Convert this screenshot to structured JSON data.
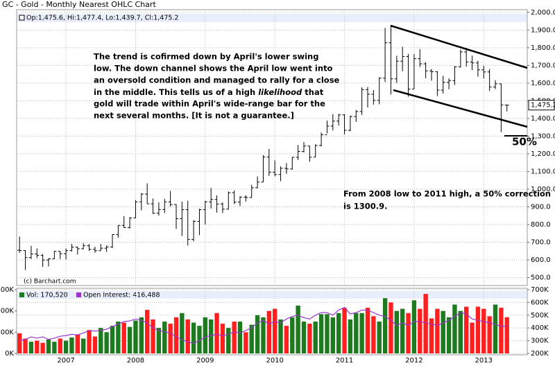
{
  "chart_data": [
    {
      "type": "ohlc",
      "title": "GC - Gold - Monthly Nearest OHLC Chart",
      "ohlc_legend": "Op:1,475.6, Hi:1,477.4, Lo:1,439.7, Cl:1,475.2",
      "categories": [
        null,
        null,
        null,
        null,
        null,
        null,
        null,
        null,
        "2007",
        null,
        null,
        null,
        null,
        null,
        null,
        null,
        null,
        null,
        null,
        null,
        "2008",
        null,
        null,
        null,
        null,
        null,
        null,
        null,
        null,
        null,
        null,
        null,
        "2009",
        null,
        null,
        null,
        null,
        null,
        null,
        null,
        null,
        null,
        null,
        null,
        "2010",
        null,
        null,
        null,
        null,
        null,
        null,
        null,
        null,
        null,
        null,
        null,
        "2011",
        null,
        null,
        null,
        null,
        null,
        null,
        null,
        null,
        null,
        null,
        null,
        "2012",
        null,
        null,
        null,
        null,
        null,
        null,
        null,
        null,
        null,
        null,
        null,
        "2013",
        null,
        null,
        null,
        null
      ],
      "ohlc": [
        [
          655,
          732,
          640,
          653
        ],
        [
          653,
          655,
          543,
          613
        ],
        [
          613,
          680,
          605,
          634
        ],
        [
          634,
          665,
          610,
          626
        ],
        [
          626,
          633,
          560,
          599
        ],
        [
          599,
          610,
          563,
          606
        ],
        [
          606,
          650,
          605,
          648
        ],
        [
          648,
          650,
          605,
          635
        ],
        [
          635,
          665,
          603,
          652
        ],
        [
          652,
          690,
          648,
          672
        ],
        [
          672,
          675,
          630,
          663
        ],
        [
          663,
          695,
          660,
          680
        ],
        [
          680,
          690,
          650,
          660
        ],
        [
          660,
          675,
          640,
          652
        ],
        [
          652,
          690,
          652,
          666
        ],
        [
          666,
          682,
          645,
          673
        ],
        [
          673,
          745,
          667,
          743
        ],
        [
          743,
          795,
          725,
          795
        ],
        [
          795,
          848,
          780,
          783
        ],
        [
          783,
          842,
          777,
          837
        ],
        [
          837,
          938,
          835,
          928
        ],
        [
          928,
          978,
          880,
          972
        ],
        [
          972,
          1033,
          917,
          917
        ],
        [
          917,
          947,
          860,
          864
        ],
        [
          864,
          925,
          850,
          885
        ],
        [
          885,
          945,
          865,
          928
        ],
        [
          928,
          990,
          902,
          913
        ],
        [
          913,
          915,
          775,
          833
        ],
        [
          833,
          930,
          735,
          884
        ],
        [
          884,
          935,
          681,
          716
        ],
        [
          716,
          825,
          705,
          818
        ],
        [
          818,
          889,
          740,
          884
        ],
        [
          884,
          935,
          800,
          928
        ],
        [
          928,
          1007,
          890,
          942
        ],
        [
          942,
          965,
          867,
          916
        ],
        [
          916,
          925,
          865,
          887
        ],
        [
          887,
          987,
          885,
          980
        ],
        [
          980,
          992,
          915,
          927
        ],
        [
          927,
          960,
          905,
          955
        ],
        [
          955,
          965,
          930,
          953
        ],
        [
          953,
          1025,
          952,
          1008
        ],
        [
          1008,
          1072,
          1005,
          1040
        ],
        [
          1040,
          1193,
          1040,
          1182
        ],
        [
          1182,
          1227,
          1075,
          1096
        ],
        [
          1096,
          1163,
          1073,
          1083
        ],
        [
          1083,
          1129,
          1045,
          1118
        ],
        [
          1118,
          1148,
          1087,
          1114
        ],
        [
          1114,
          1182,
          1110,
          1180
        ],
        [
          1180,
          1250,
          1165,
          1213
        ],
        [
          1213,
          1266,
          1208,
          1244
        ],
        [
          1244,
          1245,
          1155,
          1181
        ],
        [
          1181,
          1254,
          1181,
          1247
        ],
        [
          1247,
          1320,
          1242,
          1308
        ],
        [
          1308,
          1388,
          1316,
          1357
        ],
        [
          1357,
          1424,
          1332,
          1385
        ],
        [
          1385,
          1426,
          1360,
          1420
        ],
        [
          1420,
          1424,
          1310,
          1333
        ],
        [
          1333,
          1416,
          1327,
          1411
        ],
        [
          1411,
          1448,
          1380,
          1439
        ],
        [
          1439,
          1576,
          1420,
          1563
        ],
        [
          1563,
          1578,
          1462,
          1537
        ],
        [
          1537,
          1560,
          1478,
          1502
        ],
        [
          1502,
          1633,
          1480,
          1628
        ],
        [
          1628,
          1912,
          1606,
          1828
        ],
        [
          1828,
          1923,
          1535,
          1624
        ],
        [
          1624,
          1755,
          1600,
          1724
        ],
        [
          1724,
          1805,
          1667,
          1750
        ],
        [
          1750,
          1765,
          1523,
          1566
        ],
        [
          1566,
          1764,
          1567,
          1738
        ],
        [
          1738,
          1792,
          1691,
          1709
        ],
        [
          1709,
          1719,
          1627,
          1669
        ],
        [
          1669,
          1680,
          1613,
          1664
        ],
        [
          1664,
          1667,
          1527,
          1560
        ],
        [
          1560,
          1641,
          1541,
          1604
        ],
        [
          1604,
          1627,
          1565,
          1614
        ],
        [
          1614,
          1696,
          1589,
          1692
        ],
        [
          1692,
          1790,
          1688,
          1776
        ],
        [
          1776,
          1798,
          1693,
          1719
        ],
        [
          1719,
          1755,
          1673,
          1714
        ],
        [
          1714,
          1726,
          1636,
          1675
        ],
        [
          1675,
          1698,
          1626,
          1663
        ],
        [
          1663,
          1679,
          1555,
          1578
        ],
        [
          1578,
          1616,
          1566,
          1596
        ],
        [
          1596,
          1598,
          1322,
          1476
        ],
        [
          1475.6,
          1477.4,
          1439.7,
          1475.2
        ]
      ],
      "color": "#000000",
      "ylim": [
        455,
        2015
      ],
      "yticks": [
        {
          "value": 500,
          "label": "500.0"
        },
        {
          "value": 600,
          "label": "600.0"
        },
        {
          "value": 700,
          "label": "700.0"
        },
        {
          "value": 800,
          "label": "800.0"
        },
        {
          "value": 900,
          "label": "900.0"
        },
        {
          "value": 1000,
          "label": "1,000.0"
        },
        {
          "value": 1100,
          "label": "1,100.0"
        },
        {
          "value": 1200,
          "label": "1,200.0"
        },
        {
          "value": 1300,
          "label": "1,300.0"
        },
        {
          "value": 1400,
          "label": "1,400.0"
        },
        {
          "value": 1500,
          "label": "1,500.0"
        },
        {
          "value": 1600,
          "label": "1,600.0"
        },
        {
          "value": 1700,
          "label": "1,700.0"
        },
        {
          "value": 1800,
          "label": "1,800.0"
        },
        {
          "value": 1900,
          "label": "1,900.0"
        },
        {
          "value": 2000,
          "label": "2,000.0"
        }
      ],
      "last_label": "1,475.2",
      "grid": true,
      "source": "(c) Barchart.com",
      "note_lines": [
        "The trend is cofirmed down by April's lower swing",
        "low.  The down channel shows the April low went into",
        "an oversold condition and managed to rally for a close",
        [
          "in the middle.  This tells us of a high ",
          "likelihood",
          " that"
        ],
        "gold will trade within April's wide-range bar for the",
        "next several months.  [It is not a guarantee.]"
      ],
      "correction_lines": [
        "From 2008 low to 2011 high, a 50% correction",
        "is 1300.9."
      ],
      "fifty_label": "50%"
    },
    {
      "type": "bar",
      "series": [
        {
          "name": "Vol: 170,520",
          "up_color": "#1e7a1e",
          "down_color": "#ff1f1f",
          "values": [
            95000,
            70000,
            55000,
            60000,
            50000,
            65000,
            55000,
            70000,
            60000,
            75000,
            90000,
            70000,
            110000,
            80000,
            120000,
            100000,
            130000,
            150000,
            145000,
            125000,
            155000,
            170000,
            205000,
            160000,
            120000,
            150000,
            140000,
            170000,
            190000,
            160000,
            145000,
            130000,
            170000,
            160000,
            190000,
            140000,
            120000,
            150000,
            150000,
            100000,
            135000,
            180000,
            170000,
            200000,
            210000,
            160000,
            130000,
            170000,
            225000,
            150000,
            140000,
            150000,
            185000,
            185000,
            170000,
            190000,
            215000,
            160000,
            190000,
            190000,
            215000,
            175000,
            150000,
            260000,
            240000,
            200000,
            210000,
            190000,
            250000,
            210000,
            280000,
            165000,
            210000,
            200000,
            170000,
            230000,
            200000,
            220000,
            145000,
            220000,
            210000,
            175000,
            230000,
            215000,
            170520
          ]
        },
        {
          "name": "Open Interest: 416,488",
          "color": "#9933cc",
          "axis": "y2",
          "values": [
            300000,
            310000,
            330000,
            320000,
            330000,
            310000,
            320000,
            335000,
            340000,
            350000,
            345000,
            360000,
            380000,
            375000,
            380000,
            390000,
            410000,
            430000,
            450000,
            455000,
            470000,
            460000,
            440000,
            400000,
            380000,
            370000,
            360000,
            330000,
            310000,
            290000,
            280000,
            300000,
            330000,
            340000,
            350000,
            340000,
            350000,
            370000,
            360000,
            380000,
            400000,
            440000,
            460000,
            430000,
            450000,
            440000,
            470000,
            490000,
            500000,
            480000,
            470000,
            500000,
            520000,
            520000,
            500000,
            540000,
            560000,
            510000,
            520000,
            540000,
            540000,
            520000,
            500000,
            490000,
            460000,
            420000,
            440000,
            420000,
            450000,
            450000,
            440000,
            430000,
            420000,
            440000,
            460000,
            490000,
            520000,
            510000,
            470000,
            460000,
            450000,
            440000,
            430000,
            410000,
            416488
          ]
        }
      ],
      "ylim": [
        0,
        300000
      ],
      "yticks": [
        {
          "value": 0,
          "label": "0K"
        },
        {
          "value": 100000,
          "label": "100K"
        },
        {
          "value": 200000,
          "label": "200K"
        },
        {
          "value": 300000,
          "label": "300K"
        }
      ],
      "y2lim": [
        200000,
        700000
      ],
      "y2ticks": [
        {
          "value": 200000,
          "label": "200K"
        },
        {
          "value": 300000,
          "label": "300K"
        },
        {
          "value": 400000,
          "label": "400K"
        },
        {
          "value": 500000,
          "label": "500K"
        },
        {
          "value": 600000,
          "label": "600K"
        },
        {
          "value": 700000,
          "label": "700K"
        }
      ],
      "grid": true
    }
  ]
}
